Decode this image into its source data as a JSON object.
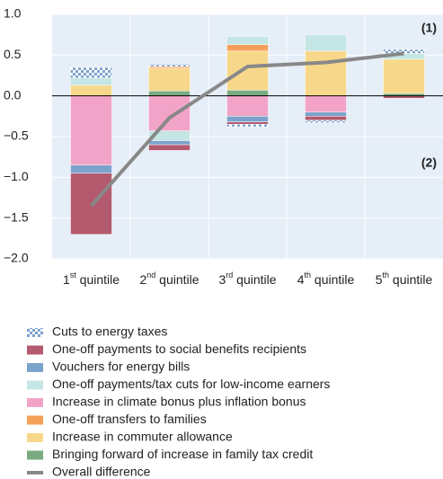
{
  "chart_data": {
    "type": "bar",
    "categories": [
      "1st quintile",
      "2nd quintile",
      "3rd quintile",
      "4th quintile",
      "5th quintile"
    ],
    "annotations": [
      "(1)",
      "(2)"
    ],
    "series": [
      {
        "name": "Bringing forward of increase in family tax credit",
        "color": "#7aab80",
        "values": [
          0,
          0.06,
          0.07,
          0,
          0.03
        ]
      },
      {
        "name": "Increase in commuter allowance",
        "color": "#f7d88a",
        "values": [
          0.13,
          0.28,
          0.48,
          0.55,
          0.42
        ]
      },
      {
        "name": "One-off transfers to families",
        "color": "#f5a05a",
        "values": [
          0,
          0.02,
          0.08,
          0,
          0
        ]
      },
      {
        "name": "Increase in climate bonus plus inflation bonus",
        "color": "#f2a3c8",
        "values": [
          -0.85,
          -0.43,
          -0.25,
          -0.2,
          0
        ]
      },
      {
        "name": "One-off payments/tax cuts for low-income earners",
        "color": "#c4e6e4",
        "values": [
          0.09,
          -0.12,
          0.1,
          0.2,
          0.07
        ]
      },
      {
        "name": "Vouchers for energy bills",
        "color": "#7ba3cc",
        "values": [
          -0.1,
          -0.05,
          -0.07,
          -0.05,
          0
        ]
      },
      {
        "name": "One-off payments to social benefits recipients",
        "color": "#b35a6e",
        "values": [
          -0.75,
          -0.07,
          -0.03,
          -0.05,
          -0.03
        ]
      },
      {
        "name": "Cuts to energy taxes",
        "color": "#7ba3cc",
        "pattern": "checkered",
        "values": [
          0.13,
          0.03,
          -0.03,
          -0.03,
          0.05
        ]
      },
      {
        "name": "Overall difference",
        "type": "line",
        "color": "#888888",
        "values": [
          -1.35,
          -0.27,
          0.36,
          0.41,
          0.52
        ]
      }
    ],
    "ylim": [
      -2.0,
      1.0
    ],
    "yticks": [
      {
        "value": -2,
        "label": "−2.0"
      },
      {
        "value": -1.5,
        "label": "−1.5"
      },
      {
        "value": -1,
        "label": "−1.0"
      },
      {
        "value": -0.5,
        "label": "−0.5"
      },
      {
        "value": 0,
        "label": "0.0"
      },
      {
        "value": 0.5,
        "label": "0.5"
      },
      {
        "value": 1,
        "label": "1.0"
      }
    ],
    "grid": true
  }
}
